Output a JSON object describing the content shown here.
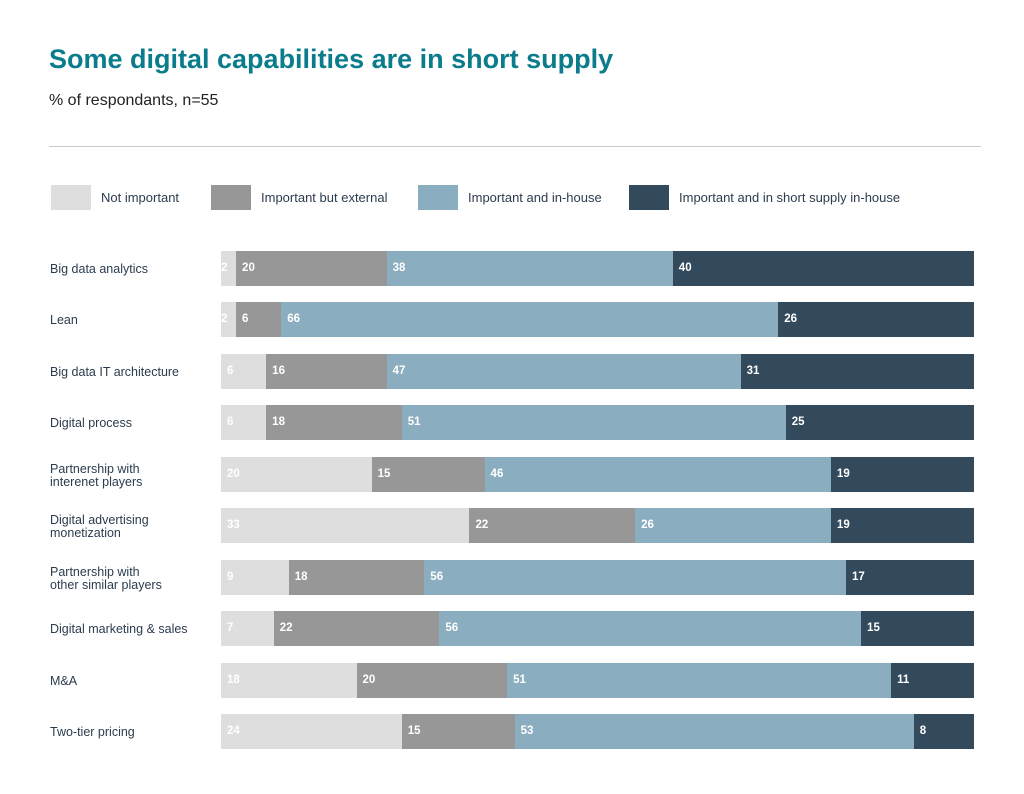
{
  "chart_data": {
    "type": "bar",
    "orientation": "horizontal",
    "stacked": true,
    "title": "Some digital capabilities are in short supply",
    "subtitle": "% of respondants, n=55",
    "xlabel": "",
    "ylabel": "",
    "legend_position": "top",
    "grid": false,
    "colors": {
      "Not important": "#dedede",
      "Important but external": "#979797",
      "Important and in-house": "#8aadc0",
      "Important and in short supply in-house": "#334a5d"
    },
    "series_names": [
      "Not important",
      "Important but external",
      "Important and in-house",
      "Important and in short supply in-house"
    ],
    "categories": [
      "Big data analytics",
      "Lean",
      "Big data IT architecture",
      "Digital process",
      "Partnership with\ninterenet players",
      "Digital advertising\nmonetization",
      "Partnership with\nother similar players",
      "Digital marketing & sales",
      "M&A",
      "Two-tier pricing"
    ],
    "series": [
      {
        "name": "Not important",
        "values": [
          2,
          2,
          6,
          6,
          20,
          33,
          9,
          7,
          18,
          24
        ]
      },
      {
        "name": "Important but external",
        "values": [
          20,
          6,
          16,
          18,
          15,
          22,
          18,
          22,
          20,
          15
        ]
      },
      {
        "name": "Important and in-house",
        "values": [
          38,
          66,
          47,
          51,
          46,
          26,
          56,
          56,
          51,
          53
        ]
      },
      {
        "name": "Important and in short supply in-house",
        "values": [
          40,
          26,
          31,
          25,
          19,
          19,
          17,
          15,
          11,
          8
        ]
      }
    ]
  },
  "legend": [
    {
      "label": "Not important",
      "color": "#dedede"
    },
    {
      "label": "Important but external",
      "color": "#979797"
    },
    {
      "label": "Important and in-house",
      "color": "#8aadc0"
    },
    {
      "label": "Important and in short supply in-house",
      "color": "#334a5d"
    }
  ]
}
